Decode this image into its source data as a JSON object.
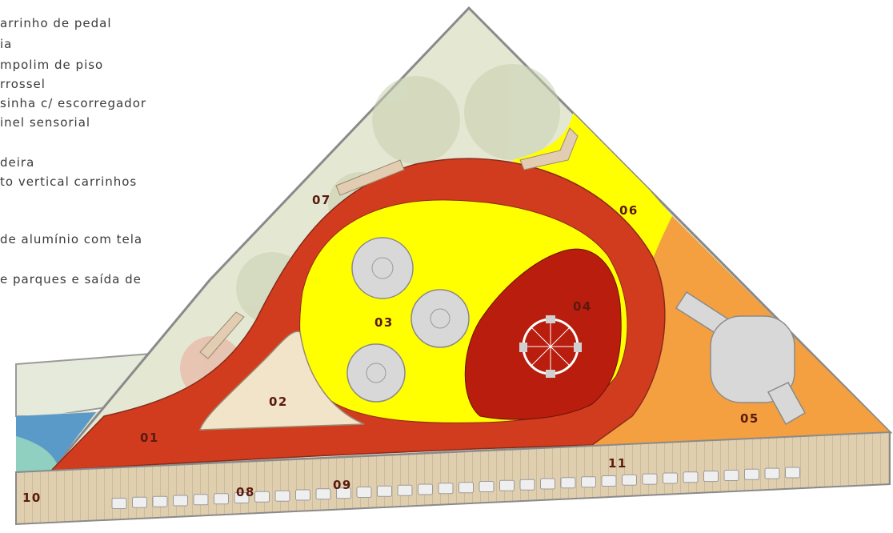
{
  "legend": {
    "items": [
      "arrinho de pedal",
      "ia",
      "mpolim de piso",
      "rrossel",
      "sinha c/ escorregador",
      "inel sensorial",
      "",
      "deira",
      "to vertical carrinhos",
      "",
      "",
      "de alumínio com tela",
      "",
      "e parques e saída de"
    ]
  },
  "zones": {
    "z01": "01",
    "z02": "02",
    "z03": "03",
    "z04": "04",
    "z05": "05",
    "z06": "06",
    "z07": "07",
    "z08": "08",
    "z09": "09",
    "z10": "10",
    "z11": "11"
  },
  "colors": {
    "red_path": "#d13c1f",
    "dark_red": "#b81d0d",
    "yellow": "#ffff00",
    "orange": "#f4a040",
    "beige": "#f2e4c8",
    "grass": "#e4e8d2",
    "blue": "#5a9ac8",
    "deck": "#e0cfae",
    "equipment_grey": "#d8d8d8"
  }
}
